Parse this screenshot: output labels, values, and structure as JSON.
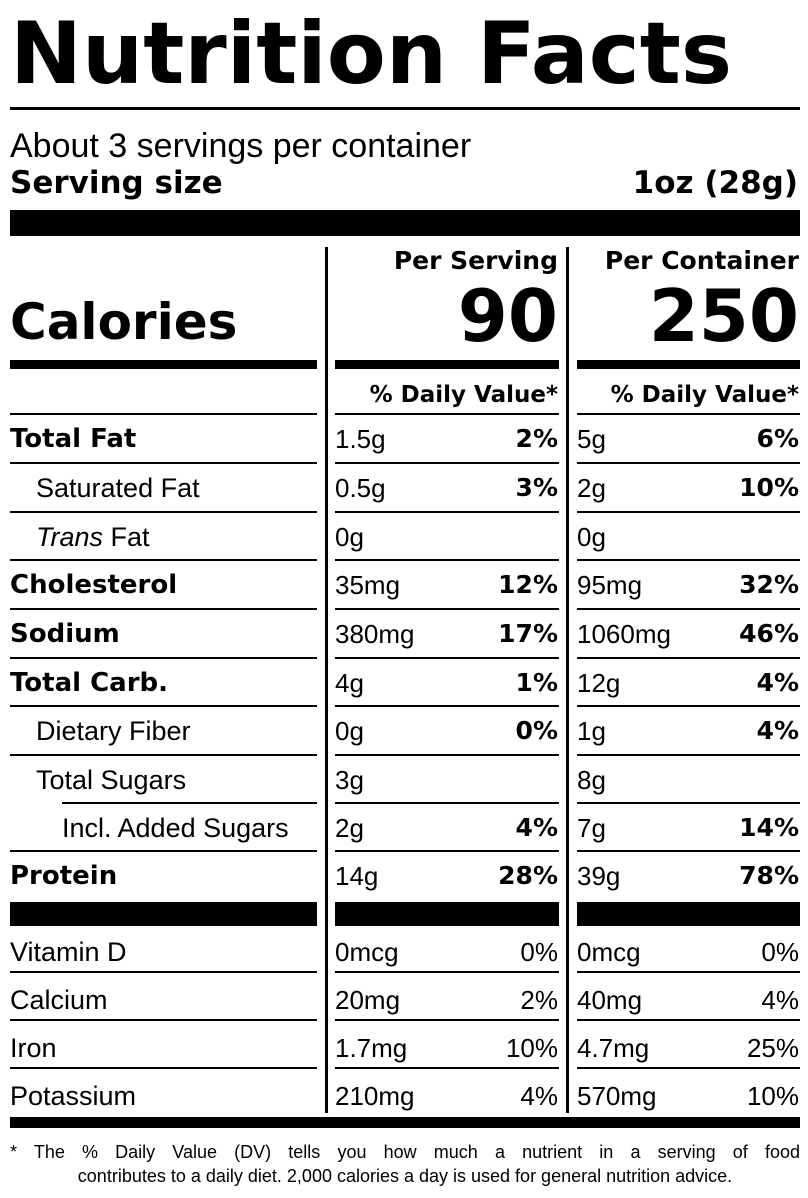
{
  "title": "Nutrition Facts",
  "servings_per_container": "About 3 servings per container",
  "serving_size": {
    "label": "Serving size",
    "value": "1oz (28g)"
  },
  "columns": {
    "per_serving": "Per Serving",
    "per_container": "Per Container",
    "dv_header": "% Daily Value*"
  },
  "calories": {
    "label": "Calories",
    "per_serving": "90",
    "per_container": "250"
  },
  "nutrients": [
    {
      "label": "Total Fat",
      "serv_amt": "1.5g",
      "serv_dv": "2%",
      "cont_amt": "5g",
      "cont_dv": "6%"
    },
    {
      "label": "Saturated Fat",
      "serv_amt": "0.5g",
      "serv_dv": "3%",
      "cont_amt": "2g",
      "cont_dv": "10%"
    },
    {
      "label_italic": "Trans",
      "label": " Fat",
      "serv_amt": "0g",
      "serv_dv": "",
      "cont_amt": "0g",
      "cont_dv": ""
    },
    {
      "label": "Cholesterol",
      "serv_amt": "35mg",
      "serv_dv": "12%",
      "cont_amt": "95mg",
      "cont_dv": "32%"
    },
    {
      "label": "Sodium",
      "serv_amt": "380mg",
      "serv_dv": "17%",
      "cont_amt": "1060mg",
      "cont_dv": "46%"
    },
    {
      "label": "Total Carb.",
      "serv_amt": "4g",
      "serv_dv": "1%",
      "cont_amt": "12g",
      "cont_dv": "4%"
    },
    {
      "label": "Dietary Fiber",
      "serv_amt": "0g",
      "serv_dv": "0%",
      "cont_amt": "1g",
      "cont_dv": "4%"
    },
    {
      "label": "Total Sugars",
      "serv_amt": "3g",
      "serv_dv": "",
      "cont_amt": "8g",
      "cont_dv": ""
    },
    {
      "label": "Incl. Added Sugars",
      "serv_amt": "2g",
      "serv_dv": "4%",
      "cont_amt": "7g",
      "cont_dv": "14%"
    },
    {
      "label": "Protein",
      "serv_amt": "14g",
      "serv_dv": "28%",
      "cont_amt": "39g",
      "cont_dv": "78%"
    }
  ],
  "vitamins": [
    {
      "label": "Vitamin D",
      "serv_amt": "0mcg",
      "serv_dv": "0%",
      "cont_amt": "0mcg",
      "cont_dv": "0%"
    },
    {
      "label": "Calcium",
      "serv_amt": "20mg",
      "serv_dv": "2%",
      "cont_amt": "40mg",
      "cont_dv": "4%"
    },
    {
      "label": "Iron",
      "serv_amt": "1.7mg",
      "serv_dv": "10%",
      "cont_amt": "4.7mg",
      "cont_dv": "25%"
    },
    {
      "label": "Potassium",
      "serv_amt": "210mg",
      "serv_dv": "4%",
      "cont_amt": "570mg",
      "cont_dv": "10%"
    }
  ],
  "footnote": {
    "line1": "* The % Daily Value (DV) tells you how much a nutrient in a serving of food",
    "line2": "contributes to a daily diet. 2,000 calories a day is used for general nutrition advice."
  }
}
